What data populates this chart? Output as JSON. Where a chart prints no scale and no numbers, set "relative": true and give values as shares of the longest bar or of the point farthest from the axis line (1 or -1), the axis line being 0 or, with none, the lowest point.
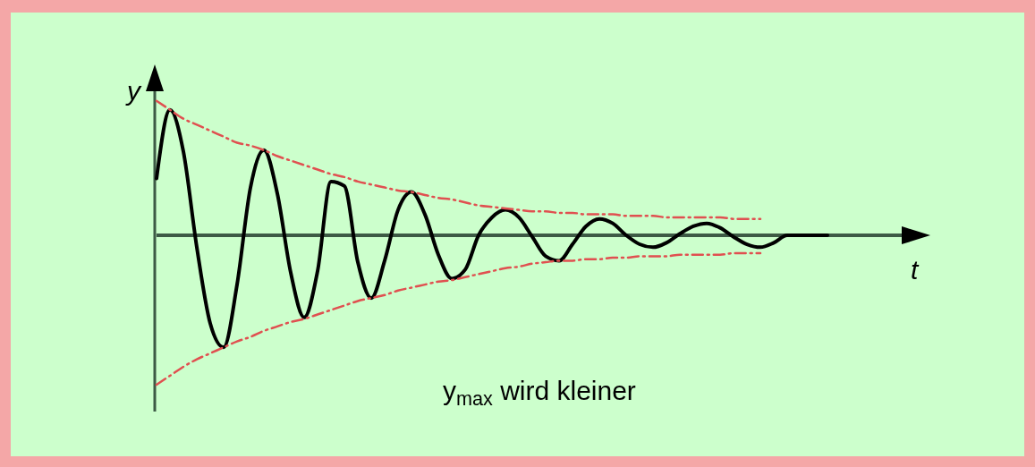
{
  "chart_data": {
    "type": "line",
    "relative": true,
    "xlabel": "t",
    "ylabel": "y",
    "annotations": [
      "y$_{max}$ wird kleiner"
    ],
    "categories": [
      null,
      null,
      null,
      null,
      null,
      null,
      null,
      null,
      null,
      null,
      null,
      null,
      null,
      null,
      null,
      null,
      null,
      null,
      null,
      null,
      null,
      null,
      null,
      null,
      null,
      null,
      null,
      null,
      null,
      null,
      null,
      null,
      null,
      null,
      null,
      null,
      null,
      null,
      null,
      null,
      null,
      null,
      null,
      null,
      null,
      null,
      null,
      null,
      null,
      null,
      null,
      null,
      null,
      null,
      null,
      null,
      null,
      null
    ],
    "series": [
      {
        "color": "#000000",
        "line_style": "solid",
        "values": [
          0.38,
          0.84,
          0.56,
          -0.08,
          -0.59,
          -0.75,
          -0.33,
          0.32,
          0.57,
          0.28,
          -0.25,
          -0.55,
          -0.24,
          0.36,
          0.33,
          -0.18,
          -0.42,
          -0.17,
          0.17,
          0.29,
          0.14,
          -0.13,
          -0.29,
          -0.23,
          0,
          0.12,
          0.17,
          0.12,
          -0.01,
          -0.14,
          -0.17,
          -0.06,
          0.06,
          0.11,
          0.08,
          0,
          -0.06,
          -0.08,
          -0.05,
          0.01,
          0.06,
          0.08,
          0.05,
          -0.01,
          -0.06,
          -0.08,
          -0.05,
          0,
          0,
          0,
          0,
          null,
          null,
          null,
          null,
          null,
          null,
          null
        ]
      },
      {
        "color": "#e05050",
        "line_style": "dashed",
        "values": [
          0.9,
          0.84,
          0.78,
          0.74,
          0.7,
          0.66,
          0.62,
          0.6,
          0.57,
          0.53,
          0.5,
          0.47,
          0.44,
          0.41,
          0.39,
          0.36,
          0.34,
          0.32,
          0.3,
          0.29,
          0.27,
          0.25,
          0.24,
          0.22,
          0.2,
          0.19,
          0.18,
          0.17,
          0.16,
          0.16,
          0.15,
          0.15,
          0.14,
          0.14,
          0.14,
          0.13,
          0.13,
          0.13,
          0.12,
          0.12,
          0.12,
          0.12,
          0.12,
          0.11,
          0.11,
          0.11,
          null,
          null,
          null,
          null,
          null,
          null,
          null,
          null,
          null,
          null,
          null,
          null
        ]
      },
      {
        "color": "#e05050",
        "line_style": "dashed",
        "values": [
          -1.0,
          -0.94,
          -0.88,
          -0.83,
          -0.79,
          -0.75,
          -0.71,
          -0.68,
          -0.64,
          -0.61,
          -0.58,
          -0.56,
          -0.53,
          -0.5,
          -0.47,
          -0.44,
          -0.42,
          -0.4,
          -0.37,
          -0.35,
          -0.33,
          -0.31,
          -0.3,
          -0.28,
          -0.26,
          -0.24,
          -0.22,
          -0.21,
          -0.19,
          -0.18,
          -0.17,
          -0.17,
          -0.16,
          -0.16,
          -0.15,
          -0.15,
          -0.14,
          -0.14,
          -0.14,
          -0.13,
          -0.13,
          -0.13,
          -0.13,
          -0.12,
          -0.12,
          -0.12,
          null,
          null,
          null,
          null,
          null,
          null,
          null,
          null,
          null,
          null,
          null,
          null
        ]
      }
    ]
  }
}
